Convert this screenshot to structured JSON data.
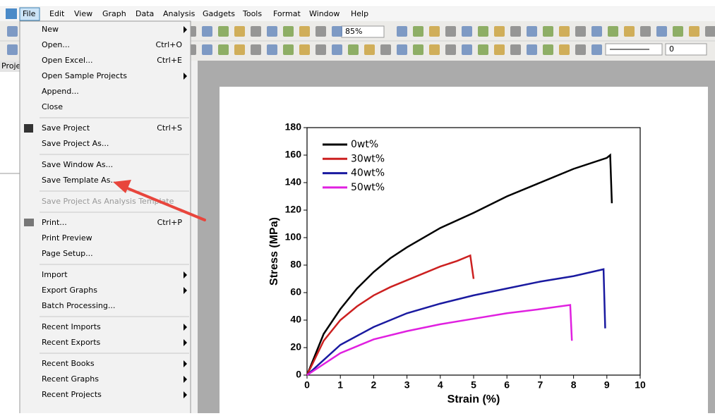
{
  "menu_bar": [
    "File",
    "Edit",
    "View",
    "Graph",
    "Data",
    "Analysis",
    "Gadgets",
    "Tools",
    "Format",
    "Window",
    "Help"
  ],
  "left_panel": {
    "tab": "Proje"
  },
  "toolbar": {
    "zoom": "85%",
    "value": "0"
  },
  "file_menu": [
    [
      {
        "label": "New",
        "submenu": true
      },
      {
        "label": "Open...",
        "shortcut": "Ctrl+O"
      },
      {
        "label": "Open Excel...",
        "shortcut": "Ctrl+E"
      },
      {
        "label": "Open Sample Projects",
        "submenu": true
      },
      {
        "label": "Append..."
      },
      {
        "label": "Close"
      }
    ],
    [
      {
        "label": "Save Project",
        "shortcut": "Ctrl+S"
      },
      {
        "label": "Save Project As..."
      }
    ],
    [
      {
        "label": "Save Window As..."
      },
      {
        "label": "Save Template As..."
      }
    ],
    [
      {
        "label": "Save Project As Analysis Template",
        "disabled": true
      }
    ],
    [
      {
        "label": "Print...",
        "shortcut": "Ctrl+P"
      },
      {
        "label": "Print Preview"
      },
      {
        "label": "Page Setup..."
      }
    ],
    [
      {
        "label": "Import",
        "submenu": true
      },
      {
        "label": "Export Graphs",
        "submenu": true
      },
      {
        "label": "Batch Processing..."
      }
    ],
    [
      {
        "label": "Recent Imports",
        "submenu": true
      },
      {
        "label": "Recent Exports",
        "submenu": true
      }
    ],
    [
      {
        "label": "Recent Books",
        "submenu": true
      },
      {
        "label": "Recent Graphs",
        "submenu": true
      },
      {
        "label": "Recent Projects",
        "submenu": true
      }
    ]
  ],
  "chart_data": {
    "type": "line",
    "xlabel": "Strain (%)",
    "ylabel": "Stress (MPa)",
    "xlim": [
      0,
      10
    ],
    "xticks": [
      0,
      1,
      2,
      3,
      4,
      5,
      6,
      7,
      8,
      9,
      10
    ],
    "ylim": [
      0,
      180
    ],
    "yticks": [
      0,
      20,
      40,
      60,
      80,
      100,
      120,
      140,
      160,
      180
    ],
    "legend": "upper left",
    "series": [
      {
        "name": "0wt%",
        "color": "#000000",
        "x": [
          0,
          0.5,
          1,
          1.5,
          2,
          2.5,
          3,
          4,
          5,
          6,
          7,
          8,
          9,
          9.1,
          9.15
        ],
        "values": [
          0,
          30,
          48,
          63,
          75,
          85,
          93,
          107,
          118,
          130,
          140,
          150,
          158,
          160,
          125
        ]
      },
      {
        "name": "30wt%",
        "color": "#cc2020",
        "x": [
          0,
          0.5,
          1,
          1.5,
          2,
          2.5,
          3,
          3.5,
          4,
          4.5,
          4.9,
          5
        ],
        "values": [
          0,
          25,
          40,
          50,
          58,
          64,
          69,
          74,
          79,
          83,
          87,
          70
        ]
      },
      {
        "name": "40wt%",
        "color": "#1a1aa0",
        "x": [
          0,
          1,
          2,
          3,
          4,
          5,
          6,
          7,
          8,
          8.9,
          8.95
        ],
        "values": [
          0,
          22,
          35,
          45,
          52,
          58,
          63,
          68,
          72,
          77,
          34
        ]
      },
      {
        "name": "50wt%",
        "color": "#e020e0",
        "x": [
          0,
          1,
          2,
          3,
          4,
          5,
          6,
          7,
          7.9,
          7.95
        ],
        "values": [
          0,
          16,
          26,
          32,
          37,
          41,
          45,
          48,
          51,
          25
        ]
      }
    ]
  }
}
